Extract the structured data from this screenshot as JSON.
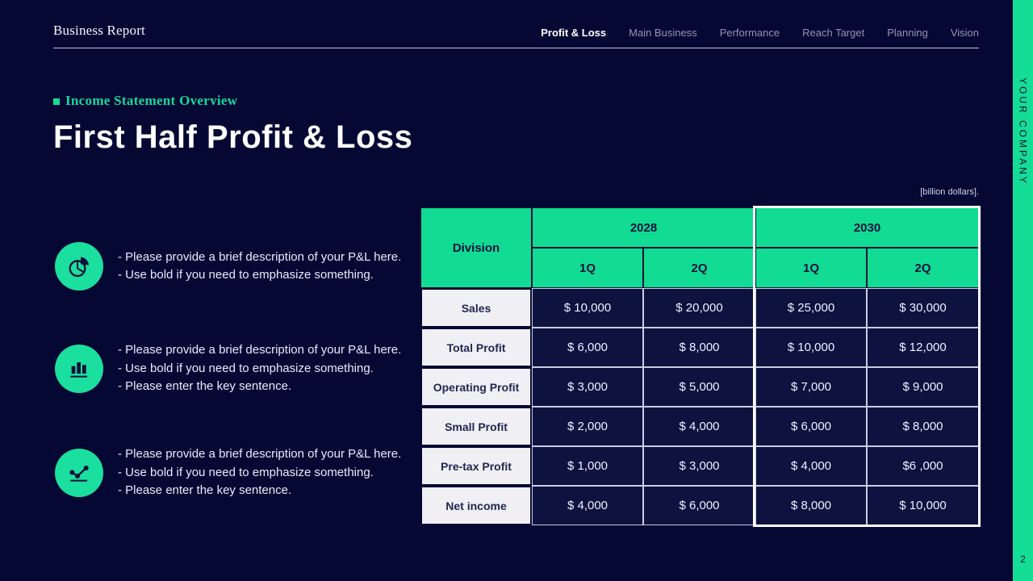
{
  "accent": "#14dd96",
  "header": {
    "brand": "Business Report",
    "nav": [
      {
        "label": "Profit & Loss",
        "active": true
      },
      {
        "label": "Main Business",
        "active": false
      },
      {
        "label": "Performance",
        "active": false
      },
      {
        "label": "Reach Target",
        "active": false
      },
      {
        "label": "Planning",
        "active": false
      },
      {
        "label": "Vision",
        "active": false
      }
    ]
  },
  "side_strip": {
    "company": "YOUR COMPANY",
    "page_number": "2"
  },
  "section": {
    "eyebrow": "Income Statement Overview",
    "title": "First Half Profit & Loss"
  },
  "unit_note": "[billion dollars].",
  "notes": [
    {
      "icon": "pie-chart-icon",
      "lines": [
        "- Please provide a brief description of your P&L here.",
        "- Use bold if you need to emphasize something."
      ]
    },
    {
      "icon": "bar-chart-icon",
      "lines": [
        "- Please provide a brief description of your P&L here.",
        "- Use bold if you need to emphasize something.",
        "- Please enter the key sentence."
      ]
    },
    {
      "icon": "line-chart-icon",
      "lines": [
        "- Please provide a brief description of your P&L here.",
        "- Use bold if you need to emphasize something.",
        "- Please enter the key sentence."
      ]
    }
  ],
  "chart_data": {
    "type": "table",
    "title": "First Half Profit & Loss",
    "unit": "[billion dollars].",
    "row_header": "Division",
    "column_groups": [
      "2028",
      "2030"
    ],
    "quarter_headers": [
      "1Q",
      "2Q",
      "1Q",
      "2Q"
    ],
    "highlighted_group": "2030",
    "rows": [
      {
        "division": "Sales",
        "values": [
          "$ 10,000",
          "$ 20,000",
          "$ 25,000",
          "$ 30,000"
        ]
      },
      {
        "division": "Total Profit",
        "values": [
          "$ 6,000",
          "$ 8,000",
          "$ 10,000",
          "$ 12,000"
        ]
      },
      {
        "division": "Operating Profit",
        "values": [
          "$ 3,000",
          "$ 5,000",
          "$ 7,000",
          "$ 9,000"
        ]
      },
      {
        "division": "Small Profit",
        "values": [
          "$ 2,000",
          "$ 4,000",
          "$ 6,000",
          "$ 8,000"
        ]
      },
      {
        "division": "Pre-tax Profit",
        "values": [
          "$ 1,000",
          "$ 3,000",
          "$ 4,000",
          "$6 ,000"
        ]
      },
      {
        "division": "Net income",
        "values": [
          "$ 4,000",
          "$ 6,000",
          "$ 8,000",
          "$ 10,000"
        ]
      }
    ]
  }
}
